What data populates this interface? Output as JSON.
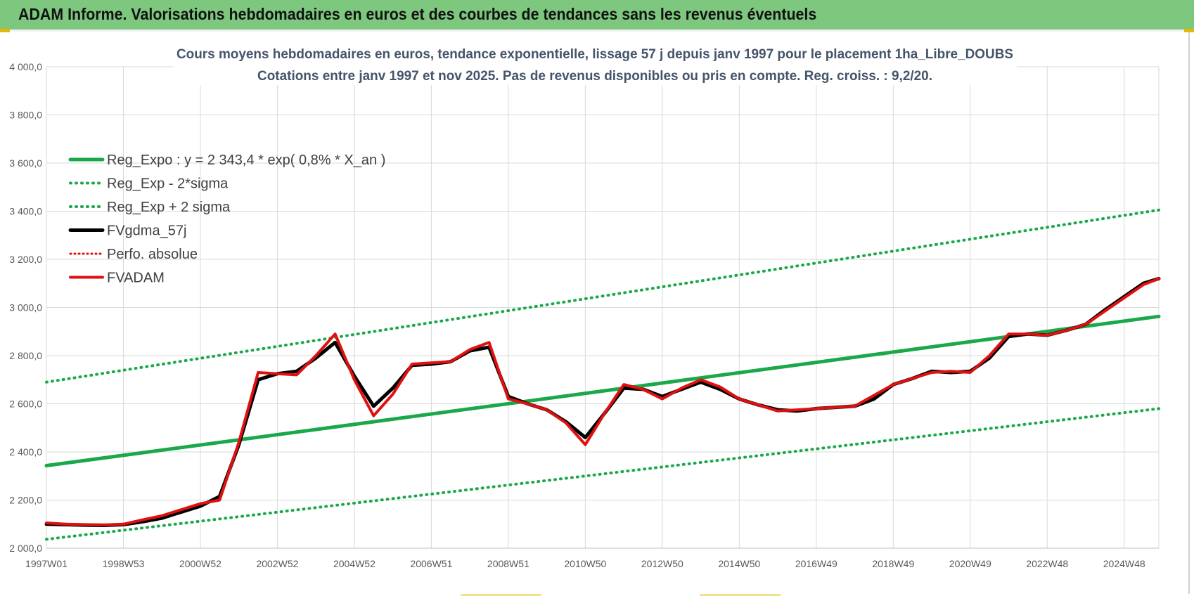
{
  "banner": {
    "title": "ADAM Informe. Valorisations hebdomadaires en euros et des courbes de tendances sans les revenus éventuels"
  },
  "colors": {
    "banner_bg": "#7dc77e",
    "reg_expo": "#1aa84a",
    "reg_sigma": "#1aa84a",
    "fvgdma": "#000000",
    "perfo": "#e01010",
    "fvadam": "#e01010",
    "title_text": "#44546a"
  },
  "chart_data": {
    "type": "line",
    "title": "Cours moyens hebdomadaires en euros, tendance exponentielle, lissage 57 j depuis janv 1997 pour le placement 1ha_Libre_DOUBS",
    "subtitle": "Cotations entre janv 1997 et nov 2025. Pas de revenus disponibles ou pris en compte. Reg. croiss. : 9,2/20.",
    "xlabel": "",
    "ylabel": "",
    "ylim": [
      2000,
      4000
    ],
    "xlim": [
      1997.0,
      2025.9
    ],
    "grid": true,
    "legend_position": "top-left",
    "y_ticks": [
      "4 000,0",
      "3 800,0",
      "3 600,0",
      "3 400,0",
      "3 200,0",
      "3 000,0",
      "2 800,0",
      "2 600,0",
      "2 400,0",
      "2 200,0",
      "2 000,0"
    ],
    "y_tick_values": [
      4000,
      3800,
      3600,
      3400,
      3200,
      3000,
      2800,
      2600,
      2400,
      2200,
      2000
    ],
    "x_ticks": [
      "1997W01",
      "1998W53",
      "2000W52",
      "2002W52",
      "2004W52",
      "2006W51",
      "2008W51",
      "2010W50",
      "2012W50",
      "2014W50",
      "2016W49",
      "2018W49",
      "2020W49",
      "2022W48",
      "2024W48"
    ],
    "x_tick_values": [
      1997.0,
      1999.0,
      2001.0,
      2003.0,
      2005.0,
      2007.0,
      2009.0,
      2011.0,
      2013.0,
      2015.0,
      2017.0,
      2019.0,
      2021.0,
      2023.0,
      2025.0
    ],
    "legend": [
      {
        "name": "Reg_Expo : y = 2 343,4 * exp( 0,8% *  X_an )",
        "series": "reg_expo"
      },
      {
        "name": "Reg_Exp - 2*sigma",
        "series": "reg_minus"
      },
      {
        "name": "Reg_Exp + 2 sigma",
        "series": "reg_plus"
      },
      {
        "name": "FVgdma_57j",
        "series": "fvgdma"
      },
      {
        "name": "Perfo. absolue",
        "series": "perfo"
      },
      {
        "name": "FVADAM",
        "series": "fvadam"
      }
    ],
    "series": [
      {
        "key": "reg_expo",
        "name": "Reg_Expo : y = 2 343,4 * exp( 0,8% *  X_an )",
        "style": "solid",
        "x": [
          1997.0,
          2025.9
        ],
        "values": [
          2343,
          2963
        ]
      },
      {
        "key": "reg_minus",
        "name": "Reg_Exp - 2*sigma",
        "style": "dotted",
        "x": [
          1997.0,
          2025.9
        ],
        "values": [
          2037,
          2580
        ]
      },
      {
        "key": "reg_plus",
        "name": "Reg_Exp + 2 sigma",
        "style": "dotted",
        "x": [
          1997.0,
          2025.9
        ],
        "values": [
          2690,
          3405
        ]
      },
      {
        "key": "fvgdma",
        "name": "FVgdma_57j",
        "style": "solid",
        "x": [
          1997.0,
          1997.5,
          1998.0,
          1998.5,
          1999.0,
          1999.5,
          2000.0,
          2000.3,
          2000.7,
          2001.0,
          2001.5,
          2002.0,
          2002.5,
          2003.0,
          2003.5,
          2004.0,
          2004.5,
          2005.0,
          2005.5,
          2006.0,
          2006.5,
          2007.0,
          2007.5,
          2008.0,
          2008.5,
          2009.0,
          2009.5,
          2010.0,
          2010.5,
          2011.0,
          2011.5,
          2012.0,
          2012.5,
          2013.0,
          2013.5,
          2014.0,
          2014.5,
          2015.0,
          2015.5,
          2016.0,
          2016.5,
          2017.0,
          2017.5,
          2018.0,
          2018.5,
          2019.0,
          2019.5,
          2020.0,
          2020.5,
          2021.0,
          2021.5,
          2022.0,
          2022.5,
          2023.0,
          2023.5,
          2024.0,
          2024.5,
          2025.0,
          2025.5,
          2025.9
        ],
        "values": [
          2100,
          2098,
          2096,
          2095,
          2098,
          2110,
          2125,
          2140,
          2160,
          2175,
          2215,
          2430,
          2700,
          2725,
          2735,
          2790,
          2855,
          2715,
          2590,
          2665,
          2760,
          2765,
          2775,
          2820,
          2835,
          2630,
          2600,
          2575,
          2525,
          2460,
          2560,
          2665,
          2660,
          2630,
          2660,
          2690,
          2660,
          2620,
          2595,
          2575,
          2570,
          2580,
          2585,
          2590,
          2620,
          2680,
          2705,
          2735,
          2730,
          2735,
          2790,
          2880,
          2890,
          2885,
          2905,
          2930,
          2990,
          3045,
          3100,
          3120
        ]
      },
      {
        "key": "perfo",
        "name": "Perfo. absolue",
        "style": "dotted",
        "x": [],
        "values": []
      },
      {
        "key": "fvadam",
        "name": "FVADAM",
        "style": "solid",
        "x": [
          1997.0,
          1997.5,
          1998.0,
          1998.5,
          1999.0,
          1999.5,
          2000.0,
          2000.3,
          2000.7,
          2001.0,
          2001.5,
          2002.0,
          2002.5,
          2003.0,
          2003.5,
          2004.0,
          2004.5,
          2005.0,
          2005.5,
          2006.0,
          2006.5,
          2007.0,
          2007.5,
          2008.0,
          2008.5,
          2009.0,
          2009.5,
          2010.0,
          2010.5,
          2011.0,
          2011.5,
          2012.0,
          2012.5,
          2013.0,
          2013.5,
          2014.0,
          2014.5,
          2015.0,
          2015.5,
          2016.0,
          2016.5,
          2017.0,
          2017.5,
          2018.0,
          2018.5,
          2019.0,
          2019.5,
          2020.0,
          2020.5,
          2021.0,
          2021.5,
          2022.0,
          2022.5,
          2023.0,
          2023.5,
          2024.0,
          2024.5,
          2025.0,
          2025.5,
          2025.9
        ],
        "values": [
          2105,
          2100,
          2098,
          2097,
          2100,
          2118,
          2135,
          2150,
          2170,
          2185,
          2200,
          2440,
          2730,
          2725,
          2720,
          2800,
          2890,
          2700,
          2550,
          2640,
          2765,
          2770,
          2775,
          2825,
          2855,
          2620,
          2600,
          2575,
          2520,
          2430,
          2560,
          2680,
          2660,
          2620,
          2665,
          2700,
          2670,
          2620,
          2595,
          2570,
          2575,
          2580,
          2585,
          2590,
          2635,
          2680,
          2705,
          2730,
          2735,
          2730,
          2800,
          2890,
          2890,
          2885,
          2905,
          2930,
          2985,
          3040,
          3095,
          3120
        ]
      }
    ]
  }
}
